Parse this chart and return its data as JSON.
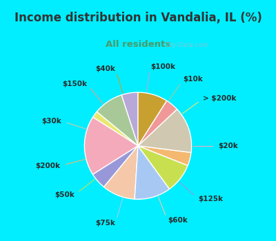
{
  "title": "Income distribution in Vandalia, IL (%)",
  "subtitle": "All residents",
  "title_color": "#333333",
  "subtitle_color": "#4a9a6a",
  "bg_cyan": "#00eeff",
  "bg_chart": "#e8f5ee",
  "watermark": "City-Data.com",
  "labels": [
    "$100k",
    "$10k",
    "> $200k",
    "$20k",
    "$125k",
    "$60k",
    "$75k",
    "$50k",
    "$200k",
    "$30k",
    "$150k",
    "$40k"
  ],
  "sizes": [
    5,
    9,
    2,
    18,
    5,
    10,
    11,
    9,
    4,
    14,
    4,
    9
  ],
  "colors": [
    "#b8a8d8",
    "#a8c898",
    "#e8e870",
    "#f4aaba",
    "#9898d8",
    "#f4c8a8",
    "#a8c8f4",
    "#c8e050",
    "#f4b870",
    "#d0c8b0",
    "#f09898",
    "#c8a030"
  ],
  "start_angle": 90
}
